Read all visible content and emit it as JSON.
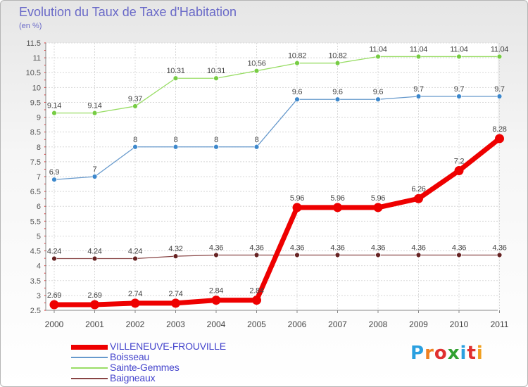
{
  "title": "Evolution du Taux de Taxe d'Habitation",
  "unit": "(en %)",
  "brand": {
    "letters": [
      "P",
      "r",
      "o",
      "x",
      "i",
      "t",
      "i"
    ],
    "colors": [
      "#2aa0e0",
      "#f08020",
      "#e03030",
      "#30a030",
      "#2aa0e0",
      "#e03030",
      "#f0a020"
    ]
  },
  "chart_data": {
    "type": "line",
    "categories": [
      "2000",
      "2001",
      "2002",
      "2003",
      "2004",
      "2005",
      "2006",
      "2007",
      "2008",
      "2009",
      "2010",
      "2011"
    ],
    "ylim": [
      2.5,
      11.5
    ],
    "y_ticks": [
      "2.5",
      "3",
      "3.5",
      "4",
      "4.5",
      "5",
      "5.5",
      "6",
      "6.5",
      "7",
      "7.5",
      "8",
      "8.5",
      "9",
      "9.5",
      "10",
      "10.5",
      "11",
      "11.5"
    ],
    "grid": true,
    "legend_position": "bottom-left",
    "series": [
      {
        "name": "VILLENEUVE-FROUVILLE",
        "color": "#ee0000",
        "highlight": true,
        "values": [
          2.69,
          2.69,
          2.74,
          2.74,
          2.84,
          2.84,
          5.96,
          5.96,
          5.96,
          6.26,
          7.2,
          8.28
        ],
        "labels": [
          "2.69",
          "2.69",
          "2.74",
          "2.74",
          "2.84",
          "2.84",
          "5.96",
          "5.96",
          "5.96",
          "6.26",
          "7.2",
          "8.28"
        ]
      },
      {
        "name": "Boisseau",
        "color": "#6699cc",
        "marker": "#3d88cc",
        "values": [
          6.9,
          7,
          8,
          8,
          8,
          8,
          9.6,
          9.6,
          9.6,
          9.7,
          9.7,
          9.7
        ],
        "labels": [
          "6.9",
          "7",
          "8",
          "8",
          "8",
          "8",
          "9.6",
          "9.6",
          "9.6",
          "9.7",
          "9.7",
          "9.7"
        ]
      },
      {
        "name": "Sainte-Gemmes",
        "color": "#99dd66",
        "marker": "#77cc44",
        "values": [
          9.14,
          9.14,
          9.37,
          10.31,
          10.31,
          10.56,
          10.82,
          10.82,
          11.04,
          11.04,
          11.04,
          11.04
        ],
        "labels": [
          "9.14",
          "9.14",
          "9.37",
          "10.31",
          "10.31",
          "10.56",
          "10.82",
          "10.82",
          "11.04",
          "11.04",
          "11.04",
          "11.04"
        ]
      },
      {
        "name": "Baigneaux",
        "color": "#884444",
        "marker": "#662222",
        "values": [
          4.24,
          4.24,
          4.24,
          4.32,
          4.36,
          4.36,
          4.36,
          4.36,
          4.36,
          4.36,
          4.36,
          4.36
        ],
        "labels": [
          "4.24",
          "4.24",
          "4.24",
          "4.32",
          "4.36",
          "4.36",
          "4.36",
          "4.36",
          "4.36",
          "4.36",
          "4.36",
          "4.36"
        ]
      }
    ]
  }
}
